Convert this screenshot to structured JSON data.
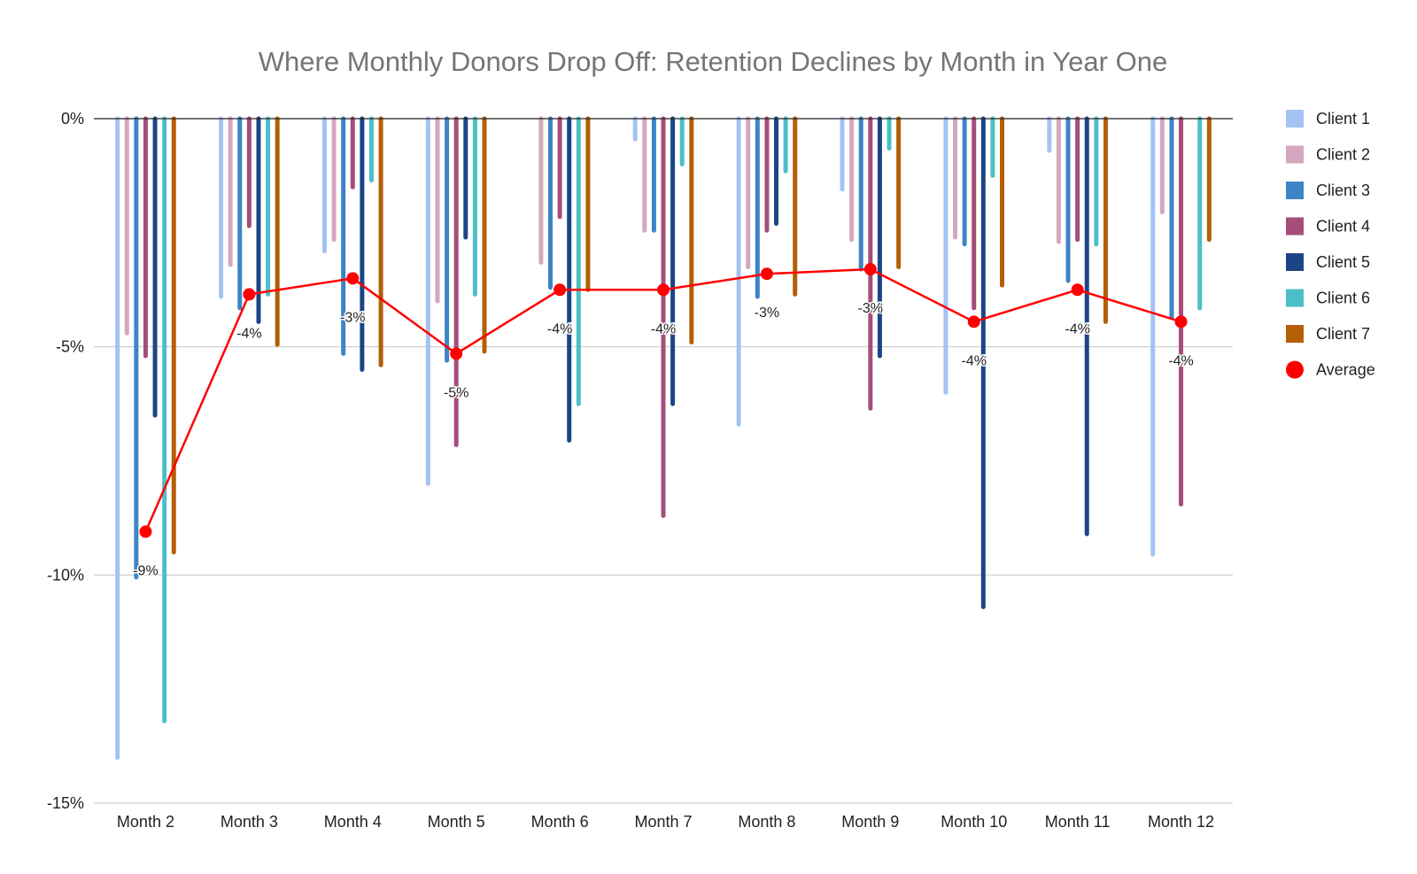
{
  "chart_data": {
    "type": "bar",
    "title": "Where Monthly Donors Drop Off: Retention Declines by Month in Year One",
    "xlabel": "",
    "ylabel": "",
    "ylim": [
      -0.15,
      0
    ],
    "y_ticks": [
      0,
      -0.05,
      -0.1,
      -0.15
    ],
    "y_tick_labels": [
      "0%",
      "-5%",
      "-10%",
      "-15%"
    ],
    "grid": true,
    "legend_position": "right",
    "categories": [
      "Month 2",
      "Month 3",
      "Month 4",
      "Month 5",
      "Month 6",
      "Month 7",
      "Month 8",
      "Month 9",
      "Month 10",
      "Month 11",
      "Month 12"
    ],
    "series": [
      {
        "name": "Client 1",
        "color": "#a4c2f4",
        "values": [
          -0.14,
          -0.039,
          -0.029,
          -0.08,
          0,
          -0.0045,
          -0.067,
          -0.0155,
          -0.06,
          -0.007,
          -0.0955
        ]
      },
      {
        "name": "Client 2",
        "color": "#d5a6bd",
        "values": [
          -0.047,
          -0.032,
          -0.0265,
          -0.04,
          -0.0315,
          -0.0245,
          -0.0325,
          -0.0265,
          -0.026,
          -0.027,
          -0.0205
        ]
      },
      {
        "name": "Client 3",
        "color": "#3d85c6",
        "values": [
          -0.1005,
          -0.0415,
          -0.0515,
          -0.053,
          -0.037,
          -0.0245,
          -0.039,
          -0.033,
          -0.0275,
          -0.0355,
          -0.0435
        ]
      },
      {
        "name": "Client 4",
        "color": "#a64d79",
        "values": [
          -0.052,
          -0.0235,
          -0.015,
          -0.0715,
          -0.0215,
          -0.087,
          -0.0245,
          -0.0635,
          -0.0415,
          -0.0265,
          -0.0845
        ]
      },
      {
        "name": "Client 5",
        "color": "#1c4587",
        "values": [
          -0.065,
          -0.0445,
          -0.055,
          -0.026,
          -0.0705,
          -0.0625,
          -0.023,
          -0.052,
          -0.107,
          -0.091,
          0
        ]
      },
      {
        "name": "Client 6",
        "color": "#4bbfc7",
        "values": [
          -0.132,
          -0.0385,
          -0.0135,
          -0.0385,
          -0.0625,
          -0.01,
          -0.0115,
          -0.0065,
          -0.0125,
          -0.0275,
          -0.0415
        ]
      },
      {
        "name": "Client 7",
        "color": "#b45f06",
        "values": [
          -0.095,
          -0.0495,
          -0.054,
          -0.051,
          -0.0375,
          -0.049,
          -0.0385,
          -0.0325,
          -0.0365,
          -0.0445,
          -0.0265
        ]
      },
      {
        "name": "Average",
        "type": "line",
        "color": "#ff0000",
        "values": [
          -0.0905,
          -0.0385,
          -0.035,
          -0.0515,
          -0.0375,
          -0.0375,
          -0.034,
          -0.033,
          -0.0445,
          -0.0375,
          -0.0445
        ],
        "labels": [
          "-9%",
          "-4%",
          "-3%",
          "-5%",
          "-4%",
          "-4%",
          "-3%",
          "-3%",
          "-4%",
          "-4%",
          "-4%"
        ]
      }
    ]
  }
}
